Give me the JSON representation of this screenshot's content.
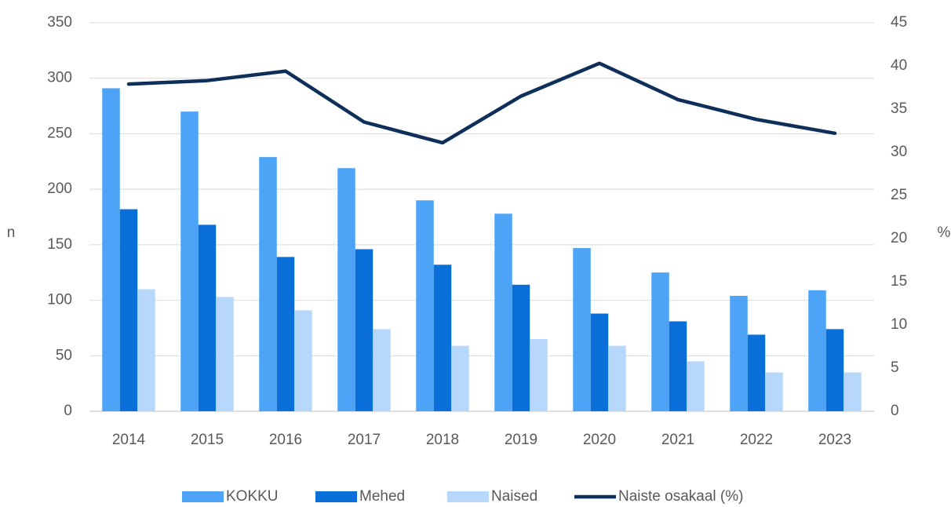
{
  "chart_data": {
    "type": "bar",
    "categories": [
      "2014",
      "2015",
      "2016",
      "2017",
      "2018",
      "2019",
      "2020",
      "2021",
      "2022",
      "2023"
    ],
    "series": [
      {
        "name": "KOKKU",
        "color": "#4da3f5",
        "values": [
          291,
          270,
          229,
          219,
          190,
          178,
          147,
          125,
          104,
          109
        ]
      },
      {
        "name": "Mehed",
        "color": "#0a6fd8",
        "values": [
          182,
          168,
          139,
          146,
          132,
          114,
          88,
          81,
          69,
          74
        ]
      },
      {
        "name": "Naised",
        "color": "#b8d8fb",
        "values": [
          110,
          103,
          91,
          74,
          59,
          65,
          59,
          45,
          35,
          35
        ]
      },
      {
        "name": "Naiste osakaal (%)",
        "color": "#0d2f5a",
        "type": "line",
        "axis": "y2",
        "values": [
          37.9,
          38.3,
          39.4,
          33.5,
          31.1,
          36.5,
          40.3,
          36.1,
          33.8,
          32.2
        ]
      }
    ],
    "ylabel": "n",
    "y2label": "%",
    "ylim": [
      0,
      350
    ],
    "yticks": [
      0,
      50,
      100,
      150,
      200,
      250,
      300,
      350
    ],
    "y2lim": [
      0,
      45
    ],
    "y2ticks": [
      0,
      5,
      10,
      15,
      20,
      25,
      30,
      35,
      40,
      45
    ],
    "grid": true,
    "legend": "bottom"
  }
}
